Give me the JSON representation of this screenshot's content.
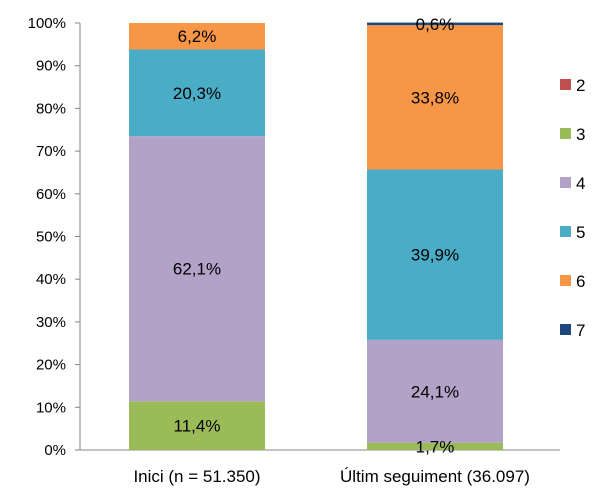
{
  "chart_data": {
    "type": "bar",
    "stacked": true,
    "categories": [
      "Inici (n = 51.350)",
      "Últim seguiment (36.097)"
    ],
    "series": [
      {
        "name": "2",
        "color": "#C0504D",
        "values": [
          0.0,
          0.0
        ],
        "labels": [
          "",
          ""
        ]
      },
      {
        "name": "3",
        "color": "#9BBB59",
        "values": [
          11.4,
          1.7
        ],
        "labels": [
          "11,4%",
          "1,7%"
        ]
      },
      {
        "name": "4",
        "color": "#B3A2C7",
        "values": [
          62.1,
          24.1
        ],
        "labels": [
          "62,1%",
          "24,1%"
        ]
      },
      {
        "name": "5",
        "color": "#4BACC6",
        "values": [
          20.3,
          39.9
        ],
        "labels": [
          "20,3%",
          "39,9%"
        ]
      },
      {
        "name": "6",
        "color": "#F79646",
        "values": [
          6.2,
          33.8
        ],
        "labels": [
          "6,2%",
          "33,8%"
        ]
      },
      {
        "name": "7",
        "color": "#1F497D",
        "values": [
          0.0,
          0.6
        ],
        "labels": [
          "",
          "0,6%"
        ]
      }
    ],
    "y_ticks": [
      "0%",
      "10%",
      "20%",
      "30%",
      "40%",
      "50%",
      "60%",
      "70%",
      "80%",
      "90%",
      "100%"
    ],
    "ylim": [
      0,
      100
    ],
    "grid": false,
    "legend_position": "right"
  }
}
